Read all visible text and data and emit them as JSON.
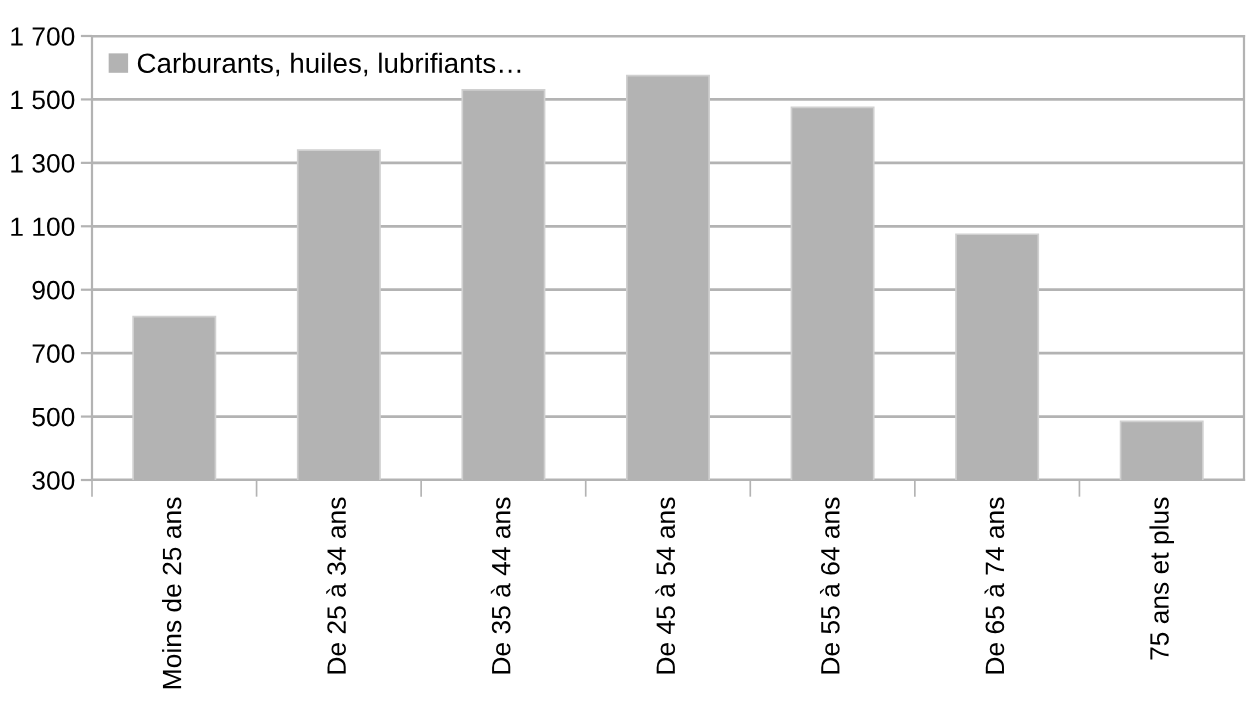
{
  "chart_data": {
    "type": "bar",
    "categories": [
      "Moins de 25 ans",
      "De 25 à 34 ans",
      "De 35 à 44 ans",
      "De 45 à 54 ans",
      "De 55 à 64 ans",
      "De 65 à 74 ans",
      "75 ans et plus"
    ],
    "series": [
      {
        "name": "Carburants, huiles, lubrifiants…",
        "color": "#b3b3b3",
        "values": [
          815,
          1340,
          1530,
          1575,
          1475,
          1075,
          485
        ]
      }
    ],
    "ylim": [
      300,
      1700
    ],
    "yticks": [
      300,
      500,
      700,
      900,
      {
        "value": 1100,
        "label": "1 100"
      },
      {
        "value": 1300,
        "label": "1 300"
      },
      {
        "value": 1500,
        "label": "1 500"
      },
      {
        "value": 1700,
        "label": "1 700"
      }
    ],
    "grid": "y",
    "legend": "top left"
  }
}
